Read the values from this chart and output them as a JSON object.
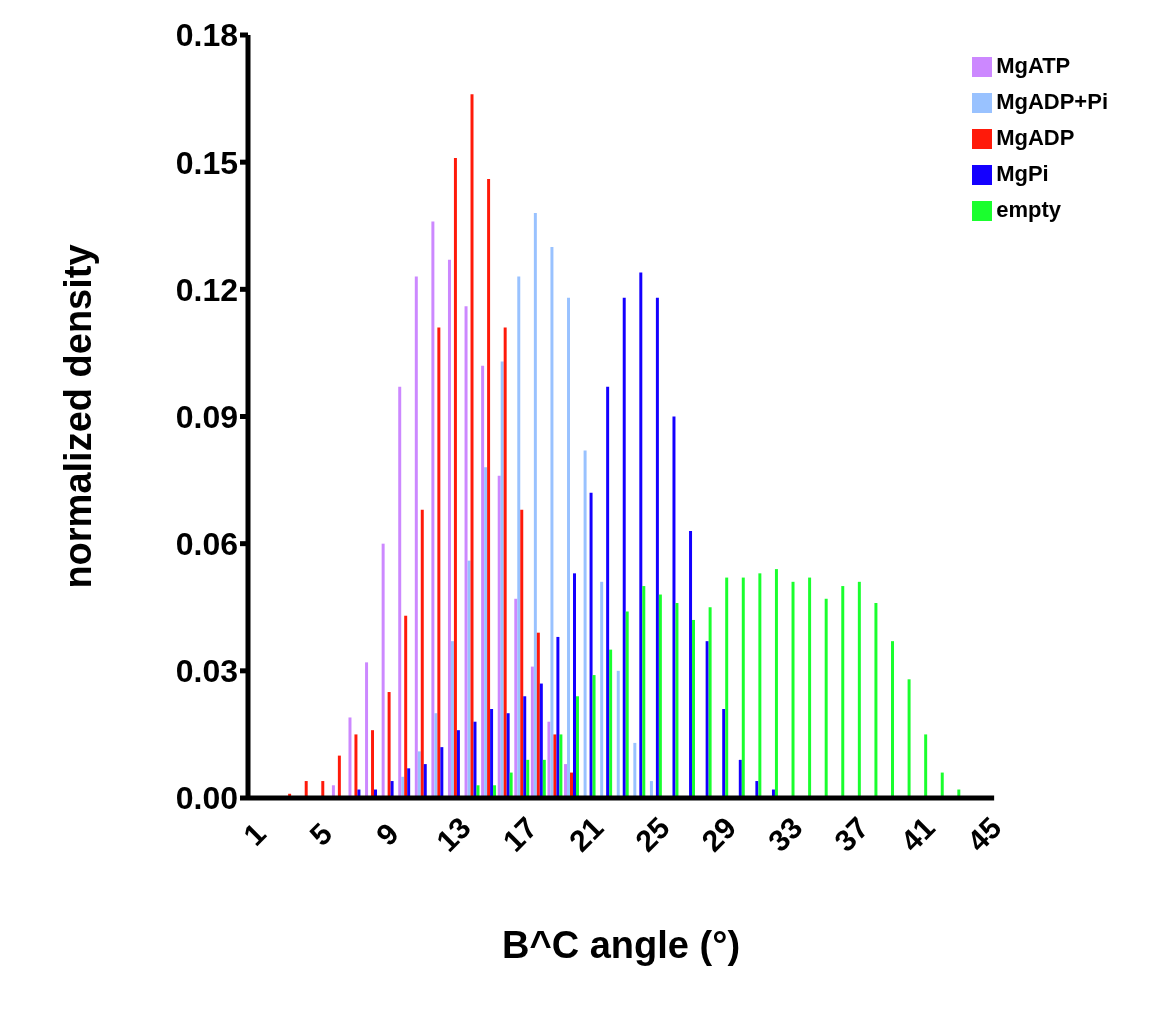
{
  "chart_data": {
    "type": "bar",
    "xlabel": "B^C angle (°)",
    "ylabel": "normalized density",
    "categories": [
      "1",
      null,
      null,
      null,
      "5",
      null,
      null,
      null,
      "9",
      null,
      null,
      null,
      "13",
      null,
      null,
      null,
      "17",
      null,
      null,
      null,
      "21",
      null,
      null,
      null,
      "25",
      null,
      null,
      null,
      "29",
      null,
      null,
      null,
      "33",
      null,
      null,
      null,
      "37",
      null,
      null,
      null,
      "41",
      null,
      null,
      null,
      "45"
    ],
    "ylim": [
      0,
      0.18
    ],
    "yticks": [
      {
        "value": 0,
        "label": "0.00"
      },
      0.03,
      0.06,
      0.09,
      0.12,
      0.15,
      0.18
    ],
    "legend": "top right",
    "series": [
      {
        "name": "MgATP",
        "color": "#cc88ff",
        "values": [
          0,
          0,
          0,
          0,
          0,
          0.003,
          0.019,
          0.032,
          0.06,
          0.097,
          0.123,
          0.136,
          0.127,
          0.116,
          0.102,
          0.076,
          0.047,
          0.031,
          0.018,
          0.008,
          0,
          0,
          0,
          0,
          0,
          0,
          0,
          0,
          0,
          0,
          0,
          0,
          0,
          0,
          0,
          0,
          0,
          0,
          0,
          0,
          0,
          0,
          0,
          0,
          0
        ]
      },
      {
        "name": "MgADP+Pi",
        "color": "#99c2ff",
        "values": [
          0,
          0,
          0,
          0,
          0,
          0,
          0,
          0,
          0,
          0.005,
          0.011,
          0.02,
          0.037,
          0.056,
          0.078,
          0.103,
          0.123,
          0.138,
          0.13,
          0.118,
          0.082,
          0.051,
          0.03,
          0.013,
          0.004,
          0,
          0,
          0,
          0,
          0,
          0,
          0,
          0,
          0,
          0,
          0,
          0,
          0,
          0,
          0,
          0,
          0,
          0,
          0,
          0
        ]
      },
      {
        "name": "MgADP",
        "color": "#ff1a0a",
        "values": [
          0,
          0,
          0.001,
          0.004,
          0.004,
          0.01,
          0.015,
          0.016,
          0.025,
          0.043,
          0.068,
          0.111,
          0.151,
          0.166,
          0.146,
          0.111,
          0.068,
          0.039,
          0.015,
          0.006,
          0,
          0,
          0,
          0,
          0,
          0,
          0,
          0,
          0,
          0,
          0,
          0,
          0,
          0,
          0,
          0,
          0,
          0,
          0,
          0,
          0,
          0,
          0,
          0,
          0
        ]
      },
      {
        "name": "MgPi",
        "color": "#1400ff",
        "values": [
          0,
          0,
          0,
          0,
          0,
          null,
          0.002,
          0.002,
          0.004,
          0.007,
          0.008,
          0.012,
          0.016,
          0.018,
          0.021,
          0.02,
          0.024,
          0.027,
          0.038,
          0.053,
          0.072,
          0.097,
          0.118,
          0.124,
          0.118,
          0.09,
          0.063,
          0.037,
          0.021,
          0.009,
          0.004,
          0.002,
          null,
          0,
          0,
          0,
          0,
          0,
          0,
          0,
          0,
          0,
          0,
          0,
          0
        ]
      },
      {
        "name": "empty",
        "color": "#1aff2e",
        "values": [
          0,
          0,
          0,
          0,
          0,
          0,
          0,
          0,
          0,
          0,
          null,
          0,
          null,
          0.003,
          0.003,
          0.006,
          0.009,
          0.009,
          0.015,
          0.024,
          0.029,
          0.035,
          0.044,
          0.05,
          0.048,
          0.046,
          0.042,
          0.045,
          0.052,
          0.052,
          0.053,
          0.054,
          0.051,
          0.052,
          0.047,
          0.05,
          0.051,
          0.046,
          0.037,
          0.028,
          0.015,
          0.006,
          0.002,
          0,
          0
        ]
      }
    ]
  }
}
